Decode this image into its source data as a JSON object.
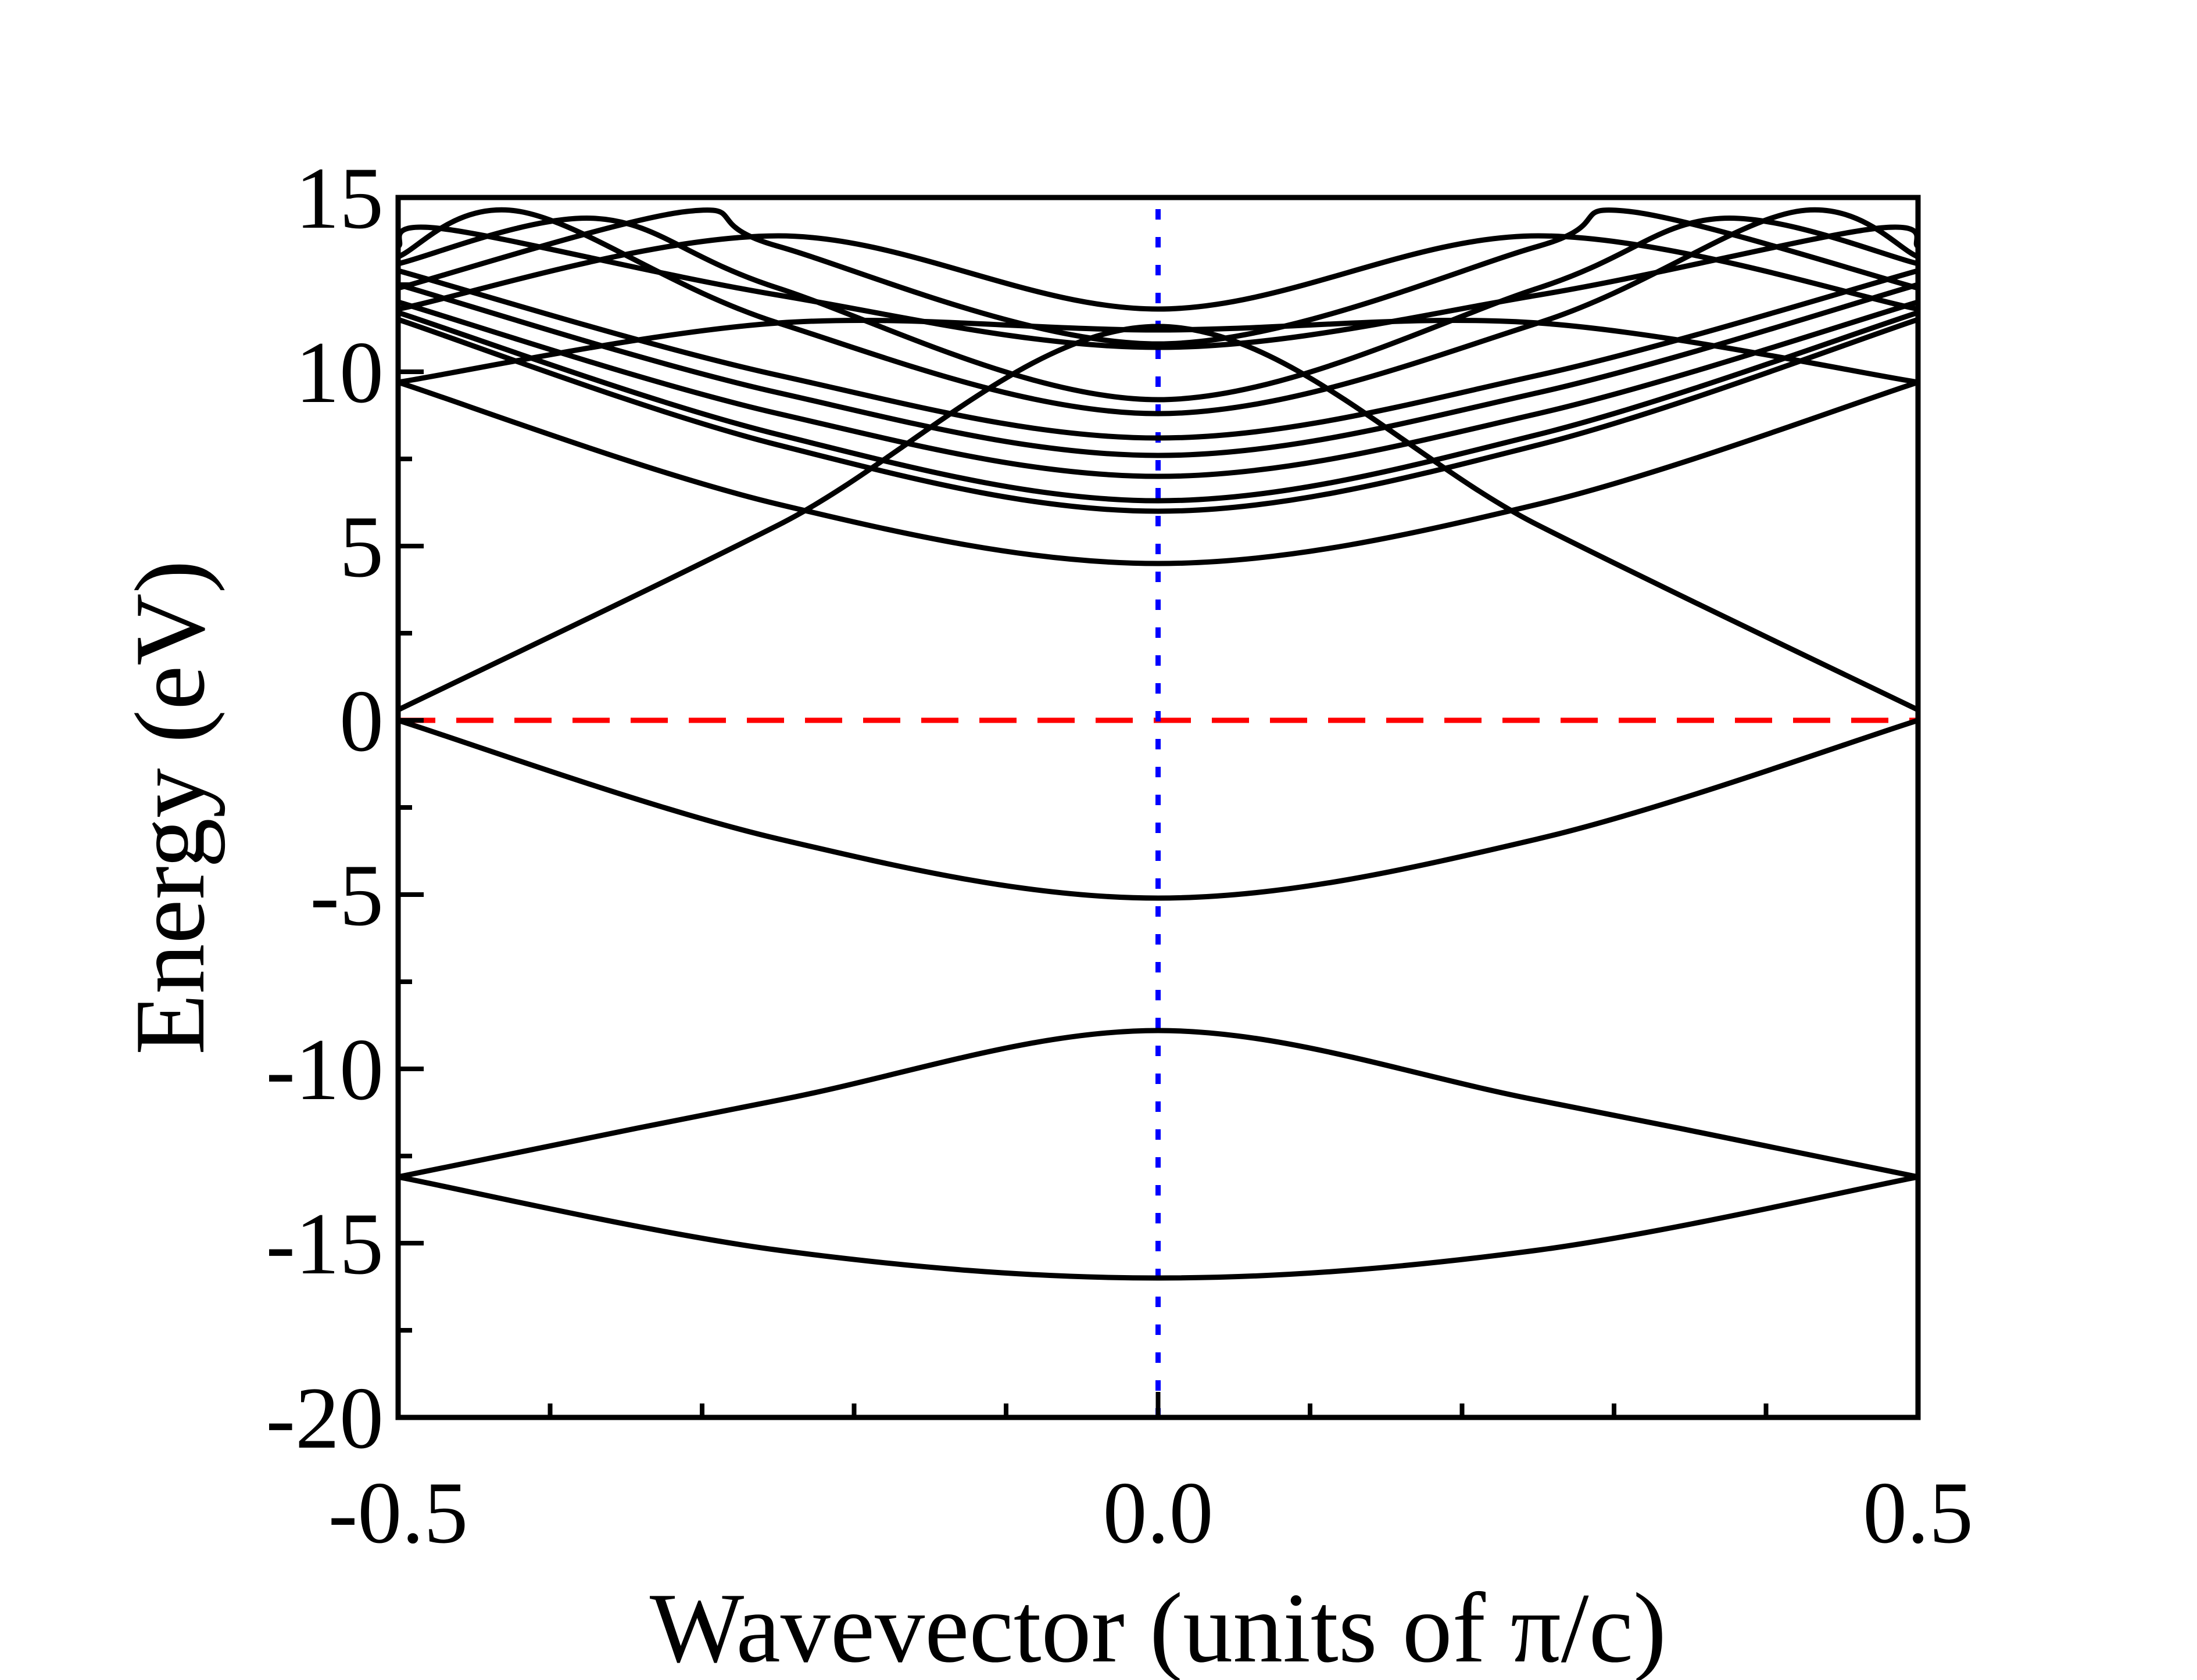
{
  "chart_data": {
    "type": "line",
    "title": "",
    "xlabel": "Wavevector (units of π/c)",
    "ylabel": "Energy (eV)",
    "xlim": [
      -0.5,
      0.5
    ],
    "ylim": [
      -20,
      15
    ],
    "x_ticks": [
      -0.5,
      0.0,
      0.5
    ],
    "x_tick_labels": [
      "-0.5",
      "0.0",
      "0.5"
    ],
    "y_ticks": [
      15,
      10,
      5,
      0,
      -5,
      -10,
      -15,
      -20
    ],
    "y_tick_labels": [
      "15",
      "10",
      "5",
      "0",
      "-5",
      "-10",
      "-15",
      "-20"
    ],
    "grid": false,
    "legend": "none",
    "colors": {
      "bands": "#000000",
      "fermi_level": "#ff0000",
      "gamma_line": "#0000ff"
    },
    "reference_lines": [
      {
        "orientation": "horizontal",
        "value": 0,
        "style": "dashed",
        "color": "#ff0000"
      },
      {
        "orientation": "vertical",
        "value": 0.0,
        "style": "dotted",
        "color": "#0000ff"
      }
    ],
    "series": [
      {
        "x": [
          -0.5,
          -0.25,
          0.0,
          0.25,
          0.5
        ],
        "values": [
          -13.1,
          -15.2,
          -16.0,
          -15.2,
          -13.1
        ]
      },
      {
        "x": [
          -0.5,
          -0.25,
          0.0,
          0.25,
          0.5
        ],
        "values": [
          -13.1,
          -10.9,
          -8.9,
          -10.9,
          -13.1
        ]
      },
      {
        "x": [
          -0.5,
          -0.25,
          0.0,
          0.25,
          0.5
        ],
        "values": [
          0.0,
          -3.4,
          -5.1,
          -3.4,
          0.0
        ]
      },
      {
        "x": [
          -0.5,
          -0.25,
          0.0,
          0.25,
          0.5
        ],
        "values": [
          0.3,
          5.6,
          11.3,
          5.6,
          0.3
        ]
      },
      {
        "x": [
          -0.5,
          -0.25,
          0.0,
          0.25,
          0.5
        ],
        "values": [
          9.7,
          6.2,
          4.5,
          6.2,
          9.7
        ]
      },
      {
        "x": [
          -0.5,
          -0.25,
          0.0,
          0.25,
          0.5
        ],
        "values": [
          9.7,
          11.4,
          11.2,
          11.4,
          9.7
        ]
      },
      {
        "x": [
          -0.5,
          -0.25,
          0.0,
          0.25,
          0.5
        ],
        "values": [
          11.5,
          7.9,
          6.0,
          7.9,
          11.5
        ]
      },
      {
        "x": [
          -0.5,
          -0.25,
          0.0,
          0.25,
          0.5
        ],
        "values": [
          11.7,
          8.2,
          6.3,
          8.2,
          11.7
        ]
      },
      {
        "x": [
          -0.5,
          -0.25,
          0.0,
          0.25,
          0.5
        ],
        "values": [
          12.0,
          8.8,
          7.0,
          8.8,
          12.0
        ]
      },
      {
        "x": [
          -0.5,
          -0.25,
          0.0,
          0.25,
          0.5
        ],
        "values": [
          12.5,
          9.4,
          7.6,
          9.4,
          12.5
        ]
      },
      {
        "x": [
          -0.5,
          -0.25,
          0.0,
          0.25,
          0.5
        ],
        "values": [
          12.9,
          9.9,
          8.1,
          9.9,
          12.9
        ]
      },
      {
        "x": [
          -0.5,
          -0.42,
          -0.25,
          0.0,
          0.25,
          0.42,
          0.5
        ],
        "values": [
          13.3,
          14.6,
          11.4,
          8.8,
          11.4,
          14.6,
          13.3
        ]
      },
      {
        "x": [
          -0.5,
          -0.37,
          -0.25,
          0.0,
          0.25,
          0.37,
          0.5
        ],
        "values": [
          13.1,
          14.4,
          12.4,
          9.2,
          12.4,
          14.4,
          13.1
        ]
      },
      {
        "x": [
          -0.5,
          -0.31,
          -0.25,
          0.0,
          0.25,
          0.31,
          0.5
        ],
        "values": [
          12.4,
          14.6,
          13.6,
          10.8,
          13.6,
          14.6,
          12.4
        ]
      },
      {
        "x": [
          -0.5,
          -0.25,
          0.0,
          0.25,
          0.5
        ],
        "values": [
          11.8,
          13.9,
          11.8,
          13.9,
          11.8
        ]
      },
      {
        "x": [
          -0.5,
          -0.47,
          -0.25,
          0.0,
          0.25,
          0.47,
          0.5
        ],
        "values": [
          13.6,
          14.1,
          12.2,
          10.7,
          12.2,
          14.1,
          13.6
        ]
      }
    ]
  }
}
